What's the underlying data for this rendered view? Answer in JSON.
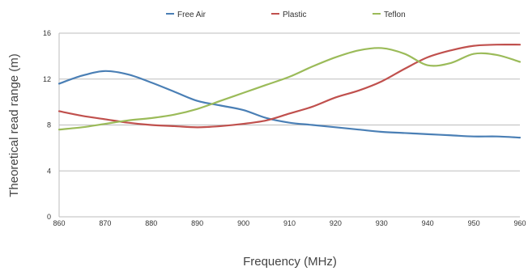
{
  "chart_data": {
    "type": "line",
    "title": "",
    "xlabel": "Frequency (MHz)",
    "ylabel": "Theoretical read range (m)",
    "xlim": [
      860,
      960
    ],
    "ylim": [
      0,
      16
    ],
    "x_ticks": [
      "860",
      "870",
      "880",
      "890",
      "900",
      "910",
      "920",
      "930",
      "940",
      "950",
      "960"
    ],
    "y_ticks": [
      "0",
      "4",
      "8",
      "12",
      "16"
    ],
    "grid": "horizontal",
    "legend_position": "top",
    "x": [
      860,
      865,
      870,
      875,
      880,
      885,
      890,
      895,
      900,
      905,
      910,
      915,
      920,
      925,
      930,
      935,
      940,
      945,
      950,
      955,
      960
    ],
    "series": [
      {
        "name": "Free Air",
        "color": "#4a7fb5",
        "values": [
          11.6,
          12.3,
          12.7,
          12.4,
          11.7,
          10.9,
          10.1,
          9.7,
          9.3,
          8.6,
          8.2,
          8.0,
          7.8,
          7.6,
          7.4,
          7.3,
          7.2,
          7.1,
          7.0,
          7.0,
          6.9
        ]
      },
      {
        "name": "Plastic",
        "color": "#c0504d",
        "values": [
          9.2,
          8.8,
          8.5,
          8.2,
          8.0,
          7.9,
          7.8,
          7.9,
          8.1,
          8.4,
          9.0,
          9.6,
          10.4,
          11.0,
          11.8,
          12.9,
          13.9,
          14.5,
          14.9,
          15.0,
          15.0
        ]
      },
      {
        "name": "Teflon",
        "color": "#9bbb59",
        "values": [
          7.6,
          7.8,
          8.1,
          8.4,
          8.6,
          8.9,
          9.4,
          10.1,
          10.8,
          11.5,
          12.2,
          13.1,
          13.9,
          14.5,
          14.7,
          14.2,
          13.2,
          13.4,
          14.2,
          14.1,
          13.5
        ]
      }
    ]
  }
}
